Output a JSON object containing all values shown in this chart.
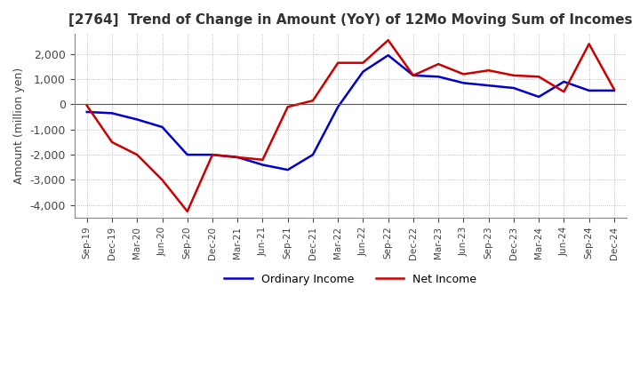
{
  "title": "[2764]  Trend of Change in Amount (YoY) of 12Mo Moving Sum of Incomes",
  "ylabel": "Amount (million yen)",
  "ylim": [
    -4500,
    2800
  ],
  "yticks": [
    -4000,
    -3000,
    -2000,
    -1000,
    0,
    1000,
    2000
  ],
  "background_color": "#ffffff",
  "plot_bg_color": "#ffffff",
  "grid_color": "#aaaaaa",
  "labels": [
    "Sep-19",
    "Dec-19",
    "Mar-20",
    "Jun-20",
    "Sep-20",
    "Dec-20",
    "Mar-21",
    "Jun-21",
    "Sep-21",
    "Dec-21",
    "Mar-22",
    "Jun-22",
    "Sep-22",
    "Dec-22",
    "Mar-23",
    "Jun-23",
    "Sep-23",
    "Dec-23",
    "Mar-24",
    "Jun-24",
    "Sep-24",
    "Dec-24"
  ],
  "ordinary_income": [
    -300,
    -350,
    -600,
    -900,
    -2000,
    -2000,
    -2100,
    -2400,
    -2600,
    -2000,
    -100,
    1300,
    1950,
    1150,
    1100,
    850,
    750,
    650,
    300,
    900,
    550,
    550
  ],
  "net_income": [
    -50,
    -1500,
    -2000,
    -3000,
    -4250,
    -2000,
    -2100,
    -2200,
    -100,
    150,
    1650,
    1650,
    2550,
    1150,
    1600,
    1200,
    1350,
    1150,
    1100,
    500,
    2400,
    600
  ],
  "ordinary_color": "#0000cc",
  "net_color": "#cc0000",
  "line_width": 1.8,
  "legend_ordinary": "Ordinary Income",
  "legend_net": "Net Income"
}
